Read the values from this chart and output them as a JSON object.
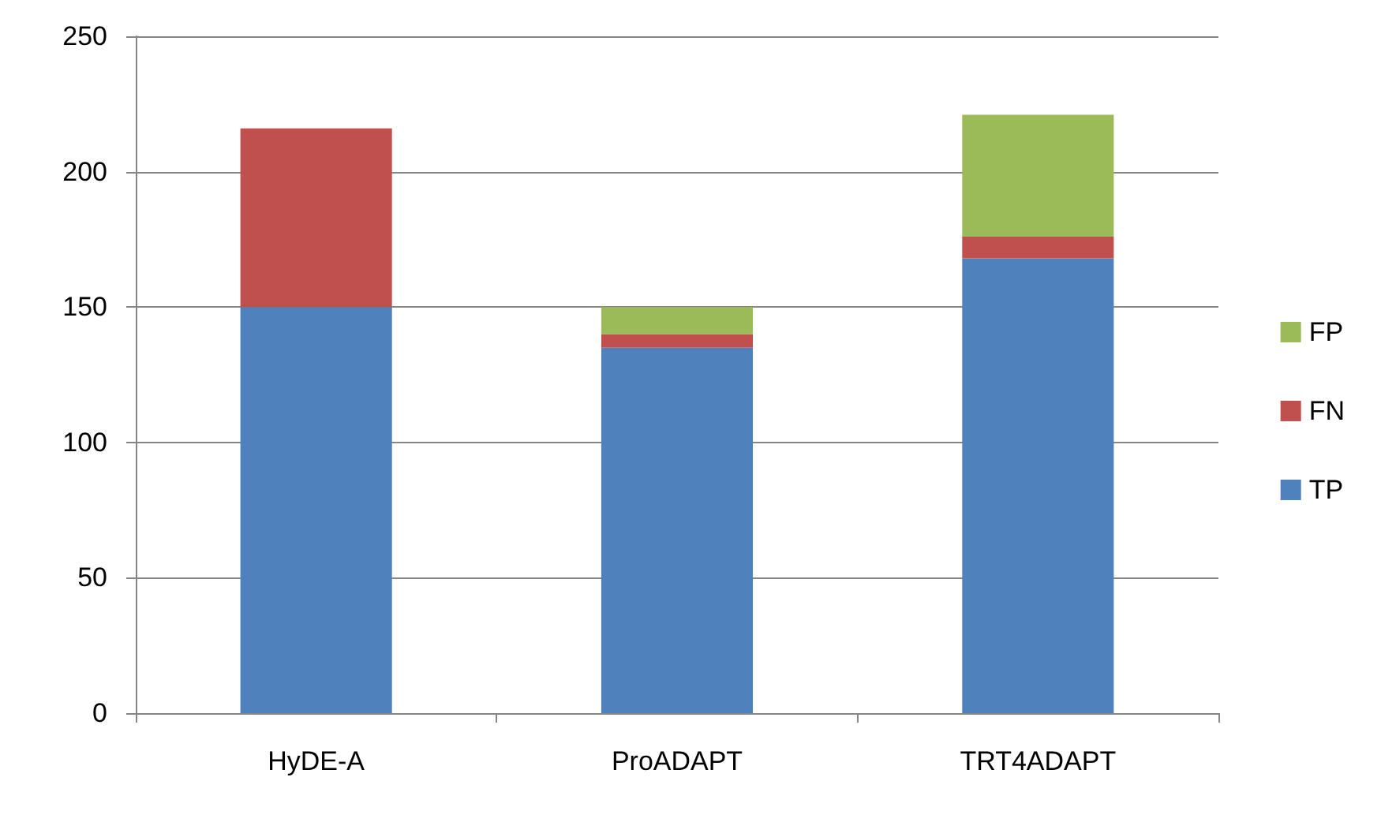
{
  "chart_data": {
    "type": "bar",
    "stacked": true,
    "categories": [
      "HyDE-A",
      "ProADAPT",
      "TRT4ADAPT"
    ],
    "series": [
      {
        "name": "TP",
        "color": "#4f81bd",
        "values": [
          150,
          135,
          168
        ]
      },
      {
        "name": "FN",
        "color": "#c0504d",
        "values": [
          66,
          5,
          8
        ]
      },
      {
        "name": "FP",
        "color": "#9bbb59",
        "values": [
          0,
          10,
          45
        ]
      }
    ],
    "ylim": [
      0,
      250
    ],
    "yticks": [
      0,
      50,
      100,
      150,
      200,
      250
    ],
    "grid": "y",
    "legend": "right"
  }
}
